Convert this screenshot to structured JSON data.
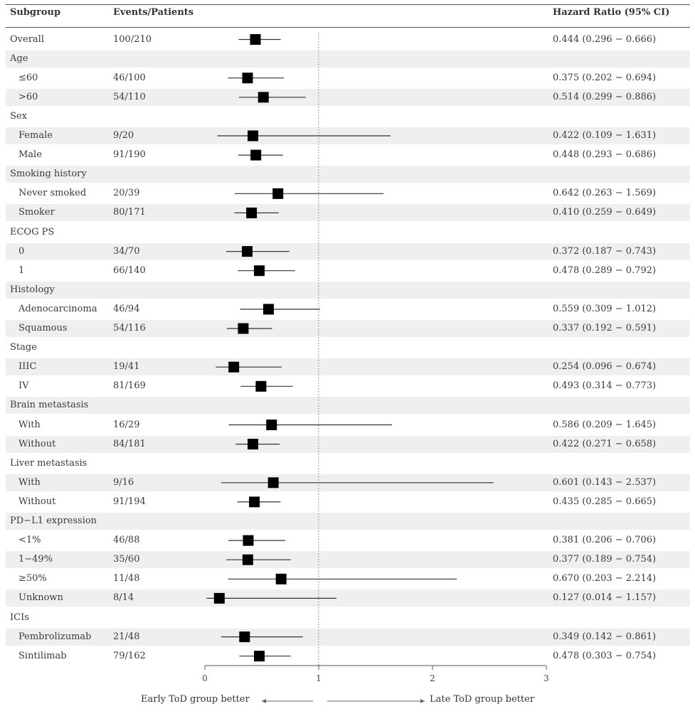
{
  "chart_data": {
    "type": "forest",
    "headers": {
      "subgroup": "Subgroup",
      "events": "Events/Patients",
      "hr": "Hazard Ratio (95% CI)"
    },
    "x_axis": {
      "min": 0,
      "max": 3,
      "ticks": [
        0,
        1,
        2,
        3
      ],
      "reference": 1
    },
    "direction_labels": {
      "left": "Early ToD group better",
      "right": "Late ToD group better"
    },
    "rows": [
      {
        "label": "Overall",
        "kind": "item",
        "indent": false,
        "events": "100/210",
        "hr": 0.444,
        "lo": 0.296,
        "hi": 0.666,
        "text": "0.444 (0.296 − 0.666)"
      },
      {
        "label": "Age",
        "kind": "group"
      },
      {
        "label": "≤60",
        "kind": "item",
        "indent": true,
        "events": "46/100",
        "hr": 0.375,
        "lo": 0.202,
        "hi": 0.694,
        "text": "0.375 (0.202 − 0.694)"
      },
      {
        "label": ">60",
        "kind": "item",
        "indent": true,
        "events": "54/110",
        "hr": 0.514,
        "lo": 0.299,
        "hi": 0.886,
        "text": "0.514 (0.299 − 0.886)"
      },
      {
        "label": "Sex",
        "kind": "group"
      },
      {
        "label": "Female",
        "kind": "item",
        "indent": true,
        "events": "9/20",
        "hr": 0.422,
        "lo": 0.109,
        "hi": 1.631,
        "text": "0.422 (0.109 − 1.631)"
      },
      {
        "label": "Male",
        "kind": "item",
        "indent": true,
        "events": "91/190",
        "hr": 0.448,
        "lo": 0.293,
        "hi": 0.686,
        "text": "0.448 (0.293 − 0.686)"
      },
      {
        "label": "Smoking history",
        "kind": "group"
      },
      {
        "label": "Never smoked",
        "kind": "item",
        "indent": true,
        "events": "20/39",
        "hr": 0.642,
        "lo": 0.263,
        "hi": 1.569,
        "text": "0.642 (0.263 − 1.569)"
      },
      {
        "label": "Smoker",
        "kind": "item",
        "indent": true,
        "events": "80/171",
        "hr": 0.41,
        "lo": 0.259,
        "hi": 0.649,
        "text": "0.410 (0.259 − 0.649)"
      },
      {
        "label": "ECOG PS",
        "kind": "group"
      },
      {
        "label": "0",
        "kind": "item",
        "indent": true,
        "events": "34/70",
        "hr": 0.372,
        "lo": 0.187,
        "hi": 0.743,
        "text": "0.372 (0.187 − 0.743)"
      },
      {
        "label": "1",
        "kind": "item",
        "indent": true,
        "events": "66/140",
        "hr": 0.478,
        "lo": 0.289,
        "hi": 0.792,
        "text": "0.478 (0.289 − 0.792)"
      },
      {
        "label": "Histology",
        "kind": "group"
      },
      {
        "label": "Adenocarcinoma",
        "kind": "item",
        "indent": true,
        "events": "46/94",
        "hr": 0.559,
        "lo": 0.309,
        "hi": 1.012,
        "text": "0.559 (0.309 − 1.012)"
      },
      {
        "label": "Squamous",
        "kind": "item",
        "indent": true,
        "events": "54/116",
        "hr": 0.337,
        "lo": 0.192,
        "hi": 0.591,
        "text": "0.337 (0.192 − 0.591)"
      },
      {
        "label": "Stage",
        "kind": "group"
      },
      {
        "label": "IIIC",
        "kind": "item",
        "indent": true,
        "events": "19/41",
        "hr": 0.254,
        "lo": 0.096,
        "hi": 0.674,
        "text": "0.254 (0.096 − 0.674)"
      },
      {
        "label": "IV",
        "kind": "item",
        "indent": true,
        "events": "81/169",
        "hr": 0.493,
        "lo": 0.314,
        "hi": 0.773,
        "text": "0.493 (0.314 − 0.773)"
      },
      {
        "label": "Brain metastasis",
        "kind": "group"
      },
      {
        "label": "With",
        "kind": "item",
        "indent": true,
        "events": "16/29",
        "hr": 0.586,
        "lo": 0.209,
        "hi": 1.645,
        "text": "0.586 (0.209 − 1.645)"
      },
      {
        "label": "Without",
        "kind": "item",
        "indent": true,
        "events": "84/181",
        "hr": 0.422,
        "lo": 0.271,
        "hi": 0.658,
        "text": "0.422 (0.271 − 0.658)"
      },
      {
        "label": "Liver metastasis",
        "kind": "group"
      },
      {
        "label": "With",
        "kind": "item",
        "indent": true,
        "events": "9/16",
        "hr": 0.601,
        "lo": 0.143,
        "hi": 2.537,
        "text": "0.601 (0.143 − 2.537)"
      },
      {
        "label": "Without",
        "kind": "item",
        "indent": true,
        "events": "91/194",
        "hr": 0.435,
        "lo": 0.285,
        "hi": 0.665,
        "text": "0.435 (0.285 − 0.665)"
      },
      {
        "label": "PD−L1 expression",
        "kind": "group"
      },
      {
        "label": "<1%",
        "kind": "item",
        "indent": true,
        "events": "46/88",
        "hr": 0.381,
        "lo": 0.206,
        "hi": 0.706,
        "text": "0.381 (0.206 − 0.706)"
      },
      {
        "label": "1−49%",
        "kind": "item",
        "indent": true,
        "events": "35/60",
        "hr": 0.377,
        "lo": 0.189,
        "hi": 0.754,
        "text": "0.377 (0.189 − 0.754)"
      },
      {
        "label": "≥50%",
        "kind": "item",
        "indent": true,
        "events": "11/48",
        "hr": 0.67,
        "lo": 0.203,
        "hi": 2.214,
        "text": "0.670 (0.203 − 2.214)"
      },
      {
        "label": "Unknown",
        "kind": "item",
        "indent": true,
        "events": "8/14",
        "hr": 0.127,
        "lo": 0.014,
        "hi": 1.157,
        "text": "0.127 (0.014 − 1.157)"
      },
      {
        "label": "ICIs",
        "kind": "group"
      },
      {
        "label": "Pembrolizumab",
        "kind": "item",
        "indent": true,
        "events": "21/48",
        "hr": 0.349,
        "lo": 0.142,
        "hi": 0.861,
        "text": "0.349 (0.142 − 0.861)"
      },
      {
        "label": "Sintilimab",
        "kind": "item",
        "indent": true,
        "events": "79/162",
        "hr": 0.478,
        "lo": 0.303,
        "hi": 0.754,
        "text": "0.478 (0.303 − 0.754)"
      }
    ],
    "colors": {
      "marker": "#000000",
      "ci_line": "#333333",
      "reference": "#777777",
      "shade": "#efefef"
    }
  }
}
